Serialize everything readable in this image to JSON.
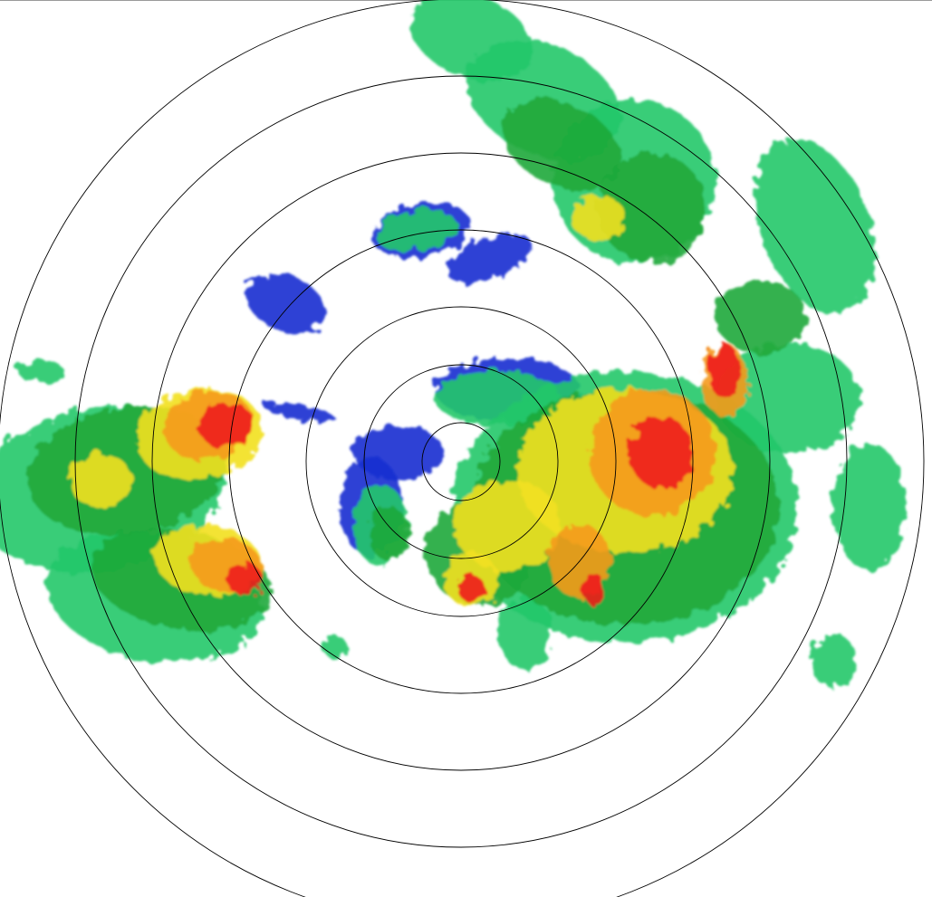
{
  "radar": {
    "range_ring_count": 7,
    "colors": {
      "ring": "#000000",
      "weak": "#1a2fd0",
      "light": "#22c86a",
      "moderate": "#1fa83a",
      "heavy": "#f2e020",
      "intense": "#f59a1c",
      "extreme": "#ee1c1c",
      "background": "#ffffff"
    }
  }
}
